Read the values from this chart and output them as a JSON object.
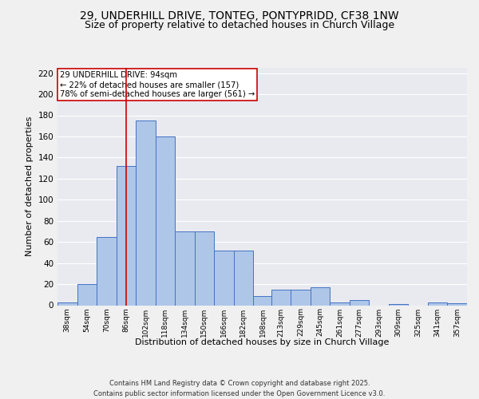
{
  "title1": "29, UNDERHILL DRIVE, TONTEG, PONTYPRIDD, CF38 1NW",
  "title2": "Size of property relative to detached houses in Church Village",
  "xlabel": "Distribution of detached houses by size in Church Village",
  "ylabel": "Number of detached properties",
  "bin_labels": [
    "38sqm",
    "54sqm",
    "70sqm",
    "86sqm",
    "102sqm",
    "118sqm",
    "134sqm",
    "150sqm",
    "166sqm",
    "182sqm",
    "198sqm",
    "213sqm",
    "229sqm",
    "245sqm",
    "261sqm",
    "277sqm",
    "293sqm",
    "309sqm",
    "325sqm",
    "341sqm",
    "357sqm"
  ],
  "bin_edges": [
    38,
    54,
    70,
    86,
    102,
    118,
    134,
    150,
    166,
    182,
    198,
    213,
    229,
    245,
    261,
    277,
    293,
    309,
    325,
    341,
    357
  ],
  "bar_heights": [
    3,
    20,
    65,
    132,
    175,
    160,
    70,
    70,
    52,
    52,
    9,
    15,
    15,
    17,
    3,
    5,
    0,
    1,
    0,
    3,
    2
  ],
  "bar_color": "#aec6e8",
  "bar_edge_color": "#4472c4",
  "background_color": "#e8eaf0",
  "grid_color": "#ffffff",
  "vline_x": 94,
  "vline_color": "#cc0000",
  "annotation_text": "29 UNDERHILL DRIVE: 94sqm\n← 22% of detached houses are smaller (157)\n78% of semi-detached houses are larger (561) →",
  "annotation_box_color": "#ffffff",
  "annotation_box_edge": "#cc0000",
  "ylim": [
    0,
    225
  ],
  "yticks": [
    0,
    20,
    40,
    60,
    80,
    100,
    120,
    140,
    160,
    180,
    200,
    220
  ],
  "footer_line1": "Contains HM Land Registry data © Crown copyright and database right 2025.",
  "footer_line2": "Contains public sector information licensed under the Open Government Licence v3.0.",
  "title_fontsize": 10,
  "subtitle_fontsize": 9
}
